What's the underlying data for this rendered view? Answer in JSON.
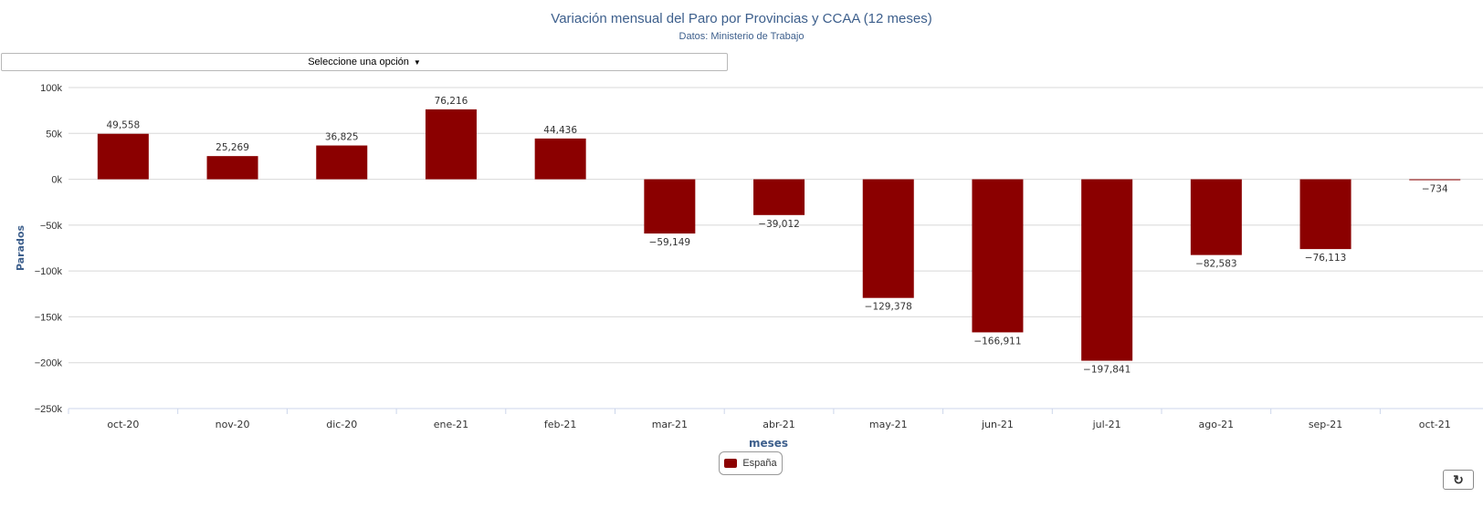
{
  "select_label": "Seleccione una opción",
  "refresh_icon": "refresh-icon",
  "chart_data": {
    "type": "bar",
    "title": "Variación mensual del Paro por Provincias y CCAA (12 meses)",
    "subtitle": "Datos: Ministerio de Trabajo",
    "xlabel": "meses",
    "ylabel": "Parados",
    "categories": [
      "oct-20",
      "nov-20",
      "dic-20",
      "ene-21",
      "feb-21",
      "mar-21",
      "abr-21",
      "may-21",
      "jun-21",
      "jul-21",
      "ago-21",
      "sep-21",
      "oct-21"
    ],
    "series": [
      {
        "name": "España",
        "color": "#8b0000",
        "values": [
          49558,
          25269,
          36825,
          76216,
          44436,
          -59149,
          -39012,
          -129378,
          -166911,
          -197841,
          -82583,
          -76113,
          -734
        ],
        "labels": [
          "49,558",
          "25,269",
          "36,825",
          "76,216",
          "44,436",
          "−59,149",
          "−39,012",
          "−129,378",
          "−166,911",
          "−197,841",
          "−82,583",
          "−76,113",
          "−734"
        ]
      }
    ],
    "ylim": [
      -250000,
      100000
    ],
    "yticks": [
      100000,
      50000,
      0,
      -50000,
      -100000,
      -150000,
      -200000,
      -250000
    ],
    "ytick_labels": [
      "100k",
      "50k",
      "0k",
      "−50k",
      "−100k",
      "−150k",
      "−200k",
      "−250k"
    ],
    "grid": true,
    "legend_position": "bottom-center"
  }
}
